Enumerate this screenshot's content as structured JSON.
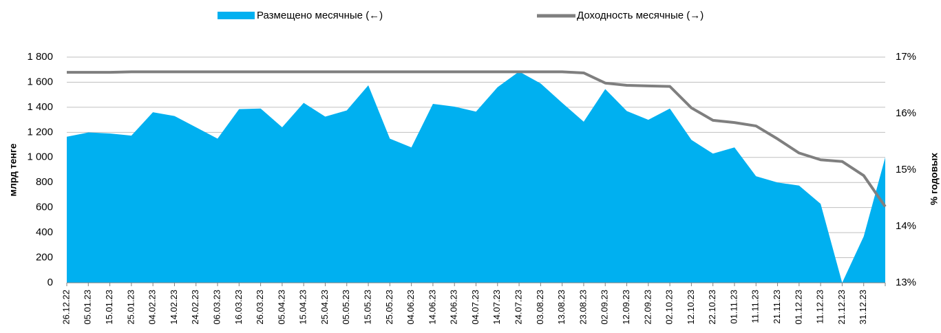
{
  "chart_data": {
    "type": "area_line",
    "categories": [
      "26.12.22",
      "05.01.23",
      "15.01.23",
      "25.01.23",
      "04.02.23",
      "14.02.23",
      "24.02.23",
      "06.03.23",
      "16.03.23",
      "26.03.23",
      "05.04.23",
      "15.04.23",
      "25.04.23",
      "05.05.23",
      "15.05.23",
      "25.05.23",
      "04.06.23",
      "14.06.23",
      "24.06.23",
      "04.07.23",
      "14.07.23",
      "24.07.23",
      "03.08.23",
      "13.08.23",
      "23.08.23",
      "02.09.23",
      "12.09.23",
      "22.09.23",
      "02.10.23",
      "12.10.23",
      "22.10.23",
      "01.11.23",
      "11.11.23",
      "21.11.23",
      "01.12.23",
      "11.12.23",
      "21.12.23",
      "31.12.23",
      null
    ],
    "series": [
      {
        "name": "Размещено месячные (←)",
        "color": "#00b0f0",
        "type": "area",
        "values": [
          1165,
          1199,
          1191,
          1174,
          1360,
          1330,
          1240,
          1150,
          1385,
          1390,
          1240,
          1435,
          1325,
          1375,
          1575,
          1150,
          1080,
          1427,
          1405,
          1365,
          1560,
          1685,
          1590,
          1435,
          1285,
          1545,
          1370,
          1300,
          1390,
          1140,
          1030,
          1080,
          850,
          800,
          775,
          630,
          0,
          370,
          1000
        ]
      },
      {
        "name": "Доходность месячные (→)",
        "color": "#7f7f7f",
        "type": "line",
        "axis": "y2",
        "values": [
          16.73,
          16.73,
          16.73,
          16.74,
          16.74,
          16.74,
          16.74,
          16.74,
          16.74,
          16.74,
          16.74,
          16.74,
          16.74,
          16.74,
          16.74,
          16.74,
          16.74,
          16.74,
          16.74,
          16.74,
          16.74,
          16.74,
          16.74,
          16.74,
          16.72,
          16.54,
          16.5,
          16.49,
          16.48,
          16.1,
          15.88,
          15.84,
          15.78,
          15.55,
          15.3,
          15.18,
          15.15,
          14.9,
          14.35
        ]
      }
    ],
    "ylabel": "млрд тенге",
    "y2label": "% годовых",
    "ylim": [
      0,
      1800
    ],
    "yticks": [
      0,
      200,
      400,
      600,
      800,
      {
        "value": 1000,
        "label": "1 000"
      },
      {
        "value": 1200,
        "label": "1 200"
      },
      {
        "value": 1400,
        "label": "1 400"
      },
      {
        "value": 1600,
        "label": "1 600"
      },
      {
        "value": 1800,
        "label": "1 800"
      }
    ],
    "y2lim": [
      13,
      17
    ],
    "y2ticks": [
      {
        "value": 13,
        "label": "13%"
      },
      {
        "value": 14,
        "label": "14%"
      },
      {
        "value": 15,
        "label": "15%"
      },
      {
        "value": 16,
        "label": "16%"
      },
      {
        "value": 17,
        "label": "17%"
      }
    ],
    "grid": true,
    "legend": "top"
  }
}
